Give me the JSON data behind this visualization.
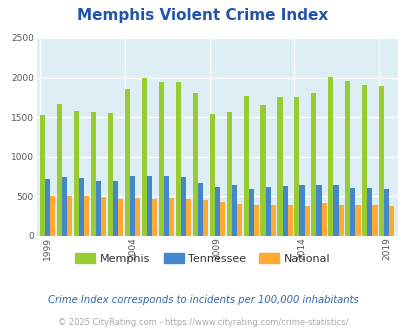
{
  "title": "Memphis Violent Crime Index",
  "title_color": "#2255aa",
  "years": [
    1999,
    2000,
    2001,
    2002,
    2003,
    2004,
    2005,
    2006,
    2007,
    2008,
    2009,
    2010,
    2011,
    2012,
    2013,
    2014,
    2015,
    2016,
    2017,
    2018,
    2019
  ],
  "memphis": [
    1525,
    1660,
    1575,
    1560,
    1550,
    1860,
    2000,
    1950,
    1940,
    1800,
    1540,
    1570,
    1770,
    1650,
    1750,
    1750,
    1810,
    2010,
    1960,
    1900,
    1890
  ],
  "tennessee": [
    720,
    750,
    730,
    700,
    700,
    760,
    760,
    760,
    740,
    665,
    615,
    640,
    595,
    620,
    625,
    645,
    645,
    640,
    600,
    600,
    595
  ],
  "national": [
    500,
    500,
    500,
    495,
    465,
    480,
    470,
    480,
    465,
    455,
    430,
    405,
    390,
    385,
    395,
    375,
    410,
    395,
    390,
    395,
    380
  ],
  "memphis_color": "#99cc33",
  "tennessee_color": "#4488cc",
  "national_color": "#ffaa33",
  "ylim": [
    0,
    2500
  ],
  "yticks": [
    0,
    500,
    1000,
    1500,
    2000,
    2500
  ],
  "xtick_years": [
    1999,
    2004,
    2009,
    2014,
    2019
  ],
  "background_color": "#ddeef5",
  "grid_color": "#ffffff",
  "subtitle": "Crime Index corresponds to incidents per 100,000 inhabitants",
  "subtitle_color": "#3366aa",
  "footer": "© 2025 CityRating.com - https://www.cityrating.com/crime-statistics/",
  "footer_color": "#aaaaaa",
  "legend_labels": [
    "Memphis",
    "Tennessee",
    "National"
  ]
}
